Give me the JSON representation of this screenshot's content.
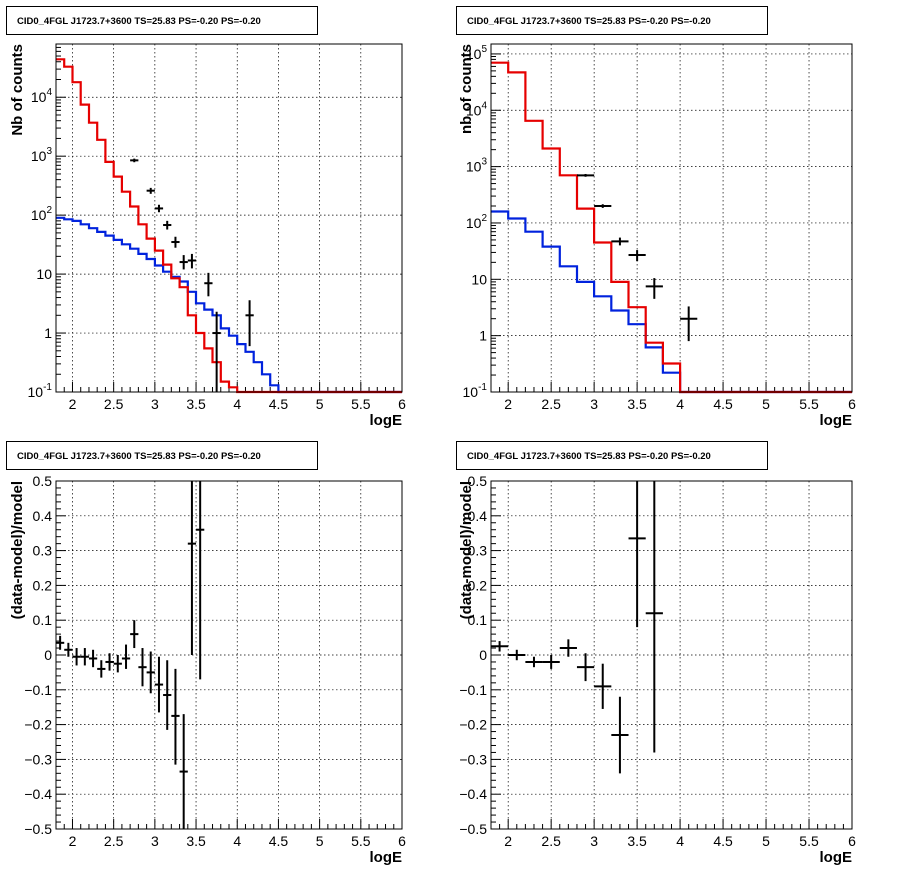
{
  "colors": {
    "data": "#000000",
    "total_model": "#e60000",
    "component_model": "#0022dd",
    "grid": "#000000"
  },
  "chart_data": [
    {
      "type": "histogram",
      "title": "CID0_4FGL J1723.7+3600 TS=25.83 PS=-0.20 PS=-0.20",
      "xlabel": "logE",
      "ylabel": "Nb of counts",
      "xlim": [
        1.8,
        6.0
      ],
      "ylim": [
        0.1,
        80000
      ],
      "yscale": "log",
      "x_ticks": [
        "2",
        "2.5",
        "3",
        "3.5",
        "4",
        "4.5",
        "5",
        "5.5",
        "6"
      ],
      "y_ticks": [
        "10^{-1}",
        "1",
        "10",
        "10^{2}",
        "10^{3}",
        "10^{4}"
      ],
      "grid": true,
      "bin_width": 0.1,
      "series": [
        {
          "values": [
            44000,
            33000,
            18000,
            7500,
            3700,
            1900,
            800,
            450,
            250,
            140,
            70,
            40,
            25,
            14.5,
            8.5,
            6.0,
            2.0,
            1.0,
            0.55,
            0.32,
            0.15,
            0.12,
            0.1,
            0.1,
            0.1,
            0.1,
            0.1,
            0.1,
            0.1,
            0.1,
            0.1,
            0.1,
            0.1,
            0.1,
            0.1,
            0.1,
            0.1,
            0.1,
            0.1,
            0.1,
            0.1,
            0.1
          ]
        },
        {
          "values": [
            90,
            85,
            80,
            70,
            60,
            52,
            45,
            38,
            32,
            27,
            22,
            18,
            14,
            11,
            9,
            7.5,
            5,
            3.2,
            2.5,
            2.0,
            1.2,
            0.9,
            0.65,
            0.48,
            0.32,
            0.2,
            0.13,
            0.1,
            0.1,
            0.1,
            0.1,
            0.1,
            0.1,
            0.1,
            0.1,
            0.1,
            0.1,
            0.1,
            0.1,
            0.1,
            0.1,
            0.1
          ]
        }
      ],
      "points": [
        {
          "x": 2.75,
          "y": 850,
          "ylo": 790,
          "yhi": 910
        },
        {
          "x": 2.95,
          "y": 260,
          "ylo": 230,
          "yhi": 290
        },
        {
          "x": 3.05,
          "y": 130,
          "ylo": 112,
          "yhi": 150
        },
        {
          "x": 3.15,
          "y": 68,
          "ylo": 57,
          "yhi": 80
        },
        {
          "x": 3.25,
          "y": 35,
          "ylo": 28,
          "yhi": 43
        },
        {
          "x": 3.35,
          "y": 16,
          "ylo": 12,
          "yhi": 21
        },
        {
          "x": 3.45,
          "y": 17,
          "ylo": 12.5,
          "yhi": 22
        },
        {
          "x": 3.65,
          "y": 7,
          "ylo": 4.2,
          "yhi": 10.5
        },
        {
          "x": 3.75,
          "y": 1.0,
          "ylo": 0.1,
          "yhi": 2.3
        },
        {
          "x": 4.15,
          "y": 2.0,
          "ylo": 0.6,
          "yhi": 3.6
        }
      ]
    },
    {
      "type": "histogram",
      "title": "CID0_4FGL J1723.7+3600 TS=25.83 PS=-0.20 PS=-0.20",
      "xlabel": "logE",
      "ylabel": "nb of counts",
      "xlim": [
        1.8,
        6.0
      ],
      "ylim": [
        0.1,
        150000
      ],
      "yscale": "log",
      "x_ticks": [
        "2",
        "2.5",
        "3",
        "3.5",
        "4",
        "4.5",
        "5",
        "5.5",
        "6"
      ],
      "y_ticks": [
        "10^{-1}",
        "1",
        "10",
        "10^{2}",
        "10^{3}",
        "10^{4}",
        "10^{5}"
      ],
      "grid": true,
      "bin_width": 0.2,
      "series": [
        {
          "values": [
            70000,
            47000,
            6500,
            2100,
            700,
            180,
            45,
            9,
            3.2,
            0.75,
            0.32,
            0.1,
            0.1,
            0.1,
            0.1,
            0.1,
            0.1,
            0.1,
            0.1,
            0.1,
            0.1
          ]
        },
        {
          "values": [
            160,
            120,
            70,
            38,
            17,
            9,
            5,
            2.8,
            1.6,
            0.62,
            0.22,
            0.1,
            0.1,
            0.1,
            0.1,
            0.1,
            0.1,
            0.1,
            0.1,
            0.1,
            0.1
          ]
        }
      ],
      "points": [
        {
          "x": 2.9,
          "y": 700,
          "ylo": 660,
          "yhi": 740
        },
        {
          "x": 3.1,
          "y": 200,
          "ylo": 185,
          "yhi": 215
        },
        {
          "x": 3.3,
          "y": 47,
          "ylo": 40,
          "yhi": 55
        },
        {
          "x": 3.5,
          "y": 27,
          "ylo": 21,
          "yhi": 33
        },
        {
          "x": 3.7,
          "y": 7.5,
          "ylo": 4.5,
          "yhi": 10.5
        },
        {
          "x": 4.1,
          "y": 2.0,
          "ylo": 0.8,
          "yhi": 3.3
        }
      ]
    },
    {
      "type": "scatter",
      "title": "CID0_4FGL J1723.7+3600 TS=25.83 PS=-0.20 PS=-0.20",
      "xlabel": "logE",
      "ylabel": "(data-model)/model",
      "xlim": [
        1.8,
        6.0
      ],
      "ylim": [
        -0.5,
        0.5
      ],
      "x_ticks": [
        "2",
        "2.5",
        "3",
        "3.5",
        "4",
        "4.5",
        "5",
        "5.5",
        "6"
      ],
      "y_ticks": [
        "−0.5",
        "−0.4",
        "−0.3",
        "−0.2",
        "−0.1",
        "0",
        "0.1",
        "0.2",
        "0.3",
        "0.4",
        "0.5"
      ],
      "grid": true,
      "points": [
        {
          "x": 1.85,
          "y": 0.035,
          "ylo": 0.015,
          "yhi": 0.055
        },
        {
          "x": 1.95,
          "y": 0.015,
          "ylo": -0.005,
          "yhi": 0.035
        },
        {
          "x": 2.05,
          "y": -0.005,
          "ylo": -0.03,
          "yhi": 0.02
        },
        {
          "x": 2.15,
          "y": -0.005,
          "ylo": -0.03,
          "yhi": 0.02
        },
        {
          "x": 2.25,
          "y": -0.01,
          "ylo": -0.035,
          "yhi": 0.015
        },
        {
          "x": 2.35,
          "y": -0.04,
          "ylo": -0.065,
          "yhi": -0.015
        },
        {
          "x": 2.45,
          "y": -0.02,
          "ylo": -0.045,
          "yhi": 0.005
        },
        {
          "x": 2.55,
          "y": -0.025,
          "ylo": -0.05,
          "yhi": 0.0
        },
        {
          "x": 2.65,
          "y": -0.01,
          "ylo": -0.04,
          "yhi": 0.03
        },
        {
          "x": 2.75,
          "y": 0.06,
          "ylo": 0.02,
          "yhi": 0.1
        },
        {
          "x": 2.85,
          "y": -0.035,
          "ylo": -0.09,
          "yhi": 0.02
        },
        {
          "x": 2.95,
          "y": -0.05,
          "ylo": -0.11,
          "yhi": 0.01
        },
        {
          "x": 3.05,
          "y": -0.085,
          "ylo": -0.165,
          "yhi": -0.005
        },
        {
          "x": 3.15,
          "y": -0.115,
          "ylo": -0.215,
          "yhi": -0.015
        },
        {
          "x": 3.25,
          "y": -0.175,
          "ylo": -0.315,
          "yhi": -0.04
        },
        {
          "x": 3.35,
          "y": -0.335,
          "ylo": -0.5,
          "yhi": -0.17
        },
        {
          "x": 3.45,
          "y": 0.32,
          "ylo": 0.0,
          "yhi": 0.5
        },
        {
          "x": 3.55,
          "y": 0.36,
          "ylo": -0.07,
          "yhi": 0.5
        }
      ]
    },
    {
      "type": "scatter",
      "title": "CID0_4FGL J1723.7+3600 TS=25.83 PS=-0.20 PS=-0.20",
      "xlabel": "logE",
      "ylabel": "(data-model)/model",
      "xlim": [
        1.8,
        6.0
      ],
      "ylim": [
        -0.5,
        0.5
      ],
      "x_ticks": [
        "2",
        "2.5",
        "3",
        "3.5",
        "4",
        "4.5",
        "5",
        "5.5",
        "6"
      ],
      "y_ticks": [
        "−0.5",
        "−0.4",
        "−0.3",
        "−0.2",
        "−0.1",
        "0",
        "0.1",
        "0.2",
        "0.3",
        "0.4",
        "0.5"
      ],
      "grid": true,
      "points": [
        {
          "x": 1.9,
          "y": 0.025,
          "ylo": 0.01,
          "yhi": 0.04
        },
        {
          "x": 2.1,
          "y": 0.0,
          "ylo": -0.015,
          "yhi": 0.015
        },
        {
          "x": 2.3,
          "y": -0.02,
          "ylo": -0.035,
          "yhi": -0.005
        },
        {
          "x": 2.5,
          "y": -0.02,
          "ylo": -0.04,
          "yhi": 0.0
        },
        {
          "x": 2.7,
          "y": 0.02,
          "ylo": -0.005,
          "yhi": 0.045
        },
        {
          "x": 2.9,
          "y": -0.035,
          "ylo": -0.075,
          "yhi": 0.005
        },
        {
          "x": 3.1,
          "y": -0.09,
          "ylo": -0.155,
          "yhi": -0.025
        },
        {
          "x": 3.3,
          "y": -0.23,
          "ylo": -0.34,
          "yhi": -0.12
        },
        {
          "x": 3.5,
          "y": 0.335,
          "ylo": 0.08,
          "yhi": 0.5
        },
        {
          "x": 3.7,
          "y": 0.12,
          "ylo": -0.28,
          "yhi": 0.5
        }
      ]
    }
  ]
}
